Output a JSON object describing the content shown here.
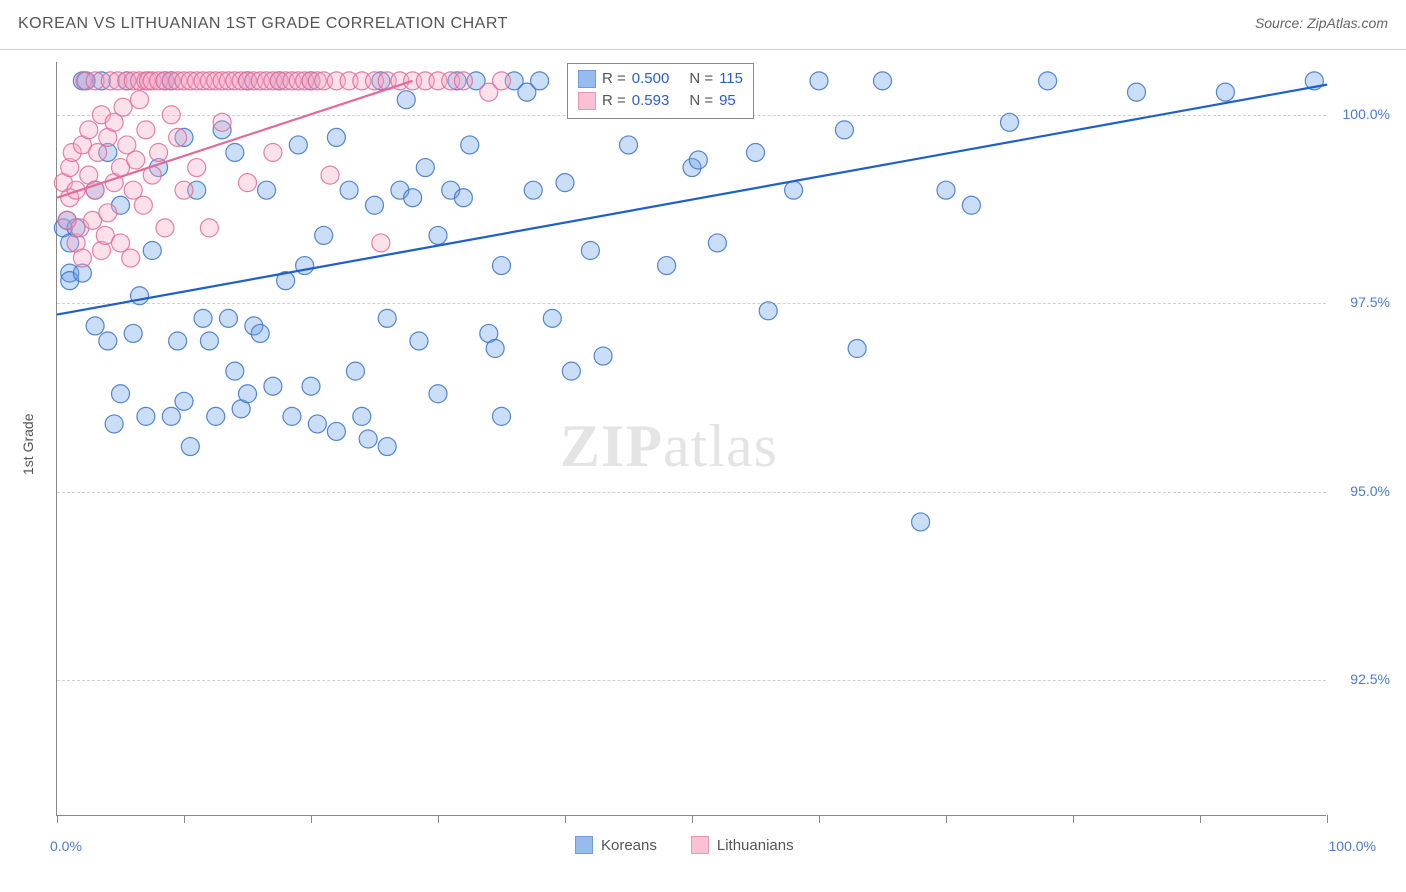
{
  "header": {
    "title": "KOREAN VS LITHUANIAN 1ST GRADE CORRELATION CHART",
    "source_label": "Source:",
    "source_name": "ZipAtlas.com"
  },
  "watermark": {
    "part1": "ZIP",
    "part2": "atlas"
  },
  "chart": {
    "type": "scatter",
    "background_color": "#ffffff",
    "grid_color": "#d0d0d0",
    "axis_color": "#888888",
    "xlim": [
      0,
      100
    ],
    "ylim": [
      90.7,
      100.7
    ],
    "y_ticks": [
      92.5,
      95.0,
      97.5,
      100.0
    ],
    "y_tick_labels": [
      "92.5%",
      "95.0%",
      "97.5%",
      "100.0%"
    ],
    "x_ticks": [
      0,
      10,
      20,
      30,
      40,
      50,
      60,
      70,
      80,
      90,
      100
    ],
    "x_axis_label_left": "0.0%",
    "x_axis_label_right": "100.0%",
    "y_axis_title": "1st Grade",
    "label_fontsize": 14,
    "label_color": "#4a7bd0",
    "marker_radius": 9,
    "marker_opacity": 0.42,
    "trend_line_width": 2.2,
    "series": [
      {
        "name": "Koreans",
        "color": "#6aa0e8",
        "stroke": "#3a72c9",
        "fill_opacity": 0.35,
        "trend_color": "#1e5fc9",
        "trend": {
          "x1": 0,
          "y1": 97.35,
          "x2": 100,
          "y2": 100.4
        },
        "R": "0.500",
        "N": "115",
        "points": [
          [
            0.5,
            98.5
          ],
          [
            0.8,
            98.6
          ],
          [
            1.0,
            97.9
          ],
          [
            1.0,
            98.3
          ],
          [
            1.0,
            97.8
          ],
          [
            1.5,
            98.5
          ],
          [
            2.0,
            97.9
          ],
          [
            2.0,
            100.45
          ],
          [
            2.3,
            100.45
          ],
          [
            3.0,
            97.2
          ],
          [
            3.0,
            99.0
          ],
          [
            3.5,
            100.45
          ],
          [
            4.0,
            99.5
          ],
          [
            4.0,
            97.0
          ],
          [
            4.5,
            95.9
          ],
          [
            5.0,
            98.8
          ],
          [
            5.0,
            96.3
          ],
          [
            5.5,
            100.45
          ],
          [
            6.0,
            97.1
          ],
          [
            6.5,
            97.6
          ],
          [
            7.0,
            96.0
          ],
          [
            7.5,
            98.2
          ],
          [
            8.0,
            99.3
          ],
          [
            8.5,
            100.45
          ],
          [
            9.0,
            100.45
          ],
          [
            9.0,
            96.0
          ],
          [
            9.5,
            97.0
          ],
          [
            10.0,
            99.7
          ],
          [
            10.0,
            96.2
          ],
          [
            10.5,
            95.6
          ],
          [
            11.0,
            99.0
          ],
          [
            11.5,
            97.3
          ],
          [
            12.0,
            97.0
          ],
          [
            12.5,
            96.0
          ],
          [
            13.0,
            99.8
          ],
          [
            13.5,
            97.3
          ],
          [
            14.0,
            99.5
          ],
          [
            14.0,
            96.6
          ],
          [
            14.5,
            96.1
          ],
          [
            15.0,
            96.3
          ],
          [
            15.0,
            100.45
          ],
          [
            15.5,
            97.2
          ],
          [
            16.0,
            97.1
          ],
          [
            16.5,
            99.0
          ],
          [
            17.0,
            96.4
          ],
          [
            17.5,
            100.45
          ],
          [
            18.0,
            97.8
          ],
          [
            18.5,
            96.0
          ],
          [
            19.0,
            99.6
          ],
          [
            19.5,
            98.0
          ],
          [
            20.0,
            96.4
          ],
          [
            20.0,
            100.45
          ],
          [
            20.5,
            95.9
          ],
          [
            21.0,
            98.4
          ],
          [
            22.0,
            99.7
          ],
          [
            22.0,
            95.8
          ],
          [
            23.0,
            99.0
          ],
          [
            23.5,
            96.6
          ],
          [
            24.0,
            96.0
          ],
          [
            24.5,
            95.7
          ],
          [
            25.0,
            98.8
          ],
          [
            25.5,
            100.45
          ],
          [
            26.0,
            97.3
          ],
          [
            26.0,
            95.6
          ],
          [
            27.0,
            99.0
          ],
          [
            27.5,
            100.2
          ],
          [
            28.0,
            98.9
          ],
          [
            28.5,
            97.0
          ],
          [
            29.0,
            99.3
          ],
          [
            30.0,
            98.4
          ],
          [
            30.0,
            96.3
          ],
          [
            31.0,
            99.0
          ],
          [
            31.5,
            100.45
          ],
          [
            32.0,
            98.9
          ],
          [
            32.5,
            99.6
          ],
          [
            33.0,
            100.45
          ],
          [
            34.0,
            97.1
          ],
          [
            34.5,
            96.9
          ],
          [
            35.0,
            98.0
          ],
          [
            35.0,
            96.0
          ],
          [
            36.0,
            100.45
          ],
          [
            37.0,
            100.3
          ],
          [
            37.5,
            99.0
          ],
          [
            38.0,
            100.45
          ],
          [
            39.0,
            97.3
          ],
          [
            40.0,
            99.1
          ],
          [
            40.5,
            96.6
          ],
          [
            41.0,
            100.45
          ],
          [
            42.0,
            98.2
          ],
          [
            43.0,
            96.8
          ],
          [
            44.0,
            100.45
          ],
          [
            45.0,
            99.6
          ],
          [
            46.0,
            100.45
          ],
          [
            48.0,
            98.0
          ],
          [
            50.0,
            99.3
          ],
          [
            50.5,
            99.4
          ],
          [
            52.0,
            98.3
          ],
          [
            53.0,
            100.45
          ],
          [
            55.0,
            99.5
          ],
          [
            56.0,
            97.4
          ],
          [
            58.0,
            99.0
          ],
          [
            60.0,
            100.45
          ],
          [
            62.0,
            99.8
          ],
          [
            63.0,
            96.9
          ],
          [
            65.0,
            100.45
          ],
          [
            68.0,
            94.6
          ],
          [
            70.0,
            99.0
          ],
          [
            72.0,
            98.8
          ],
          [
            75.0,
            99.9
          ],
          [
            78.0,
            100.45
          ],
          [
            85.0,
            100.3
          ],
          [
            92.0,
            100.3
          ],
          [
            99.0,
            100.45
          ]
        ]
      },
      {
        "name": "Lithuanians",
        "color": "#f7a8c3",
        "stroke": "#e16b99",
        "fill_opacity": 0.35,
        "trend_color": "#e16b99",
        "trend": {
          "x1": 0,
          "y1": 98.9,
          "x2": 28,
          "y2": 100.45
        },
        "R": "0.593",
        "N": "95",
        "points": [
          [
            0.5,
            99.1
          ],
          [
            0.8,
            98.6
          ],
          [
            1.0,
            99.3
          ],
          [
            1.0,
            98.9
          ],
          [
            1.2,
            99.5
          ],
          [
            1.5,
            98.3
          ],
          [
            1.5,
            99.0
          ],
          [
            1.8,
            98.5
          ],
          [
            2.0,
            99.6
          ],
          [
            2.0,
            98.1
          ],
          [
            2.2,
            100.45
          ],
          [
            2.5,
            99.2
          ],
          [
            2.5,
            99.8
          ],
          [
            2.8,
            98.6
          ],
          [
            3.0,
            99.0
          ],
          [
            3.0,
            100.45
          ],
          [
            3.2,
            99.5
          ],
          [
            3.5,
            98.2
          ],
          [
            3.5,
            100.0
          ],
          [
            3.8,
            98.4
          ],
          [
            4.0,
            99.7
          ],
          [
            4.0,
            98.7
          ],
          [
            4.2,
            100.45
          ],
          [
            4.5,
            99.1
          ],
          [
            4.5,
            99.9
          ],
          [
            4.8,
            100.45
          ],
          [
            5.0,
            98.3
          ],
          [
            5.0,
            99.3
          ],
          [
            5.2,
            100.1
          ],
          [
            5.5,
            99.6
          ],
          [
            5.5,
            100.45
          ],
          [
            5.8,
            98.1
          ],
          [
            6.0,
            99.0
          ],
          [
            6.0,
            100.45
          ],
          [
            6.2,
            99.4
          ],
          [
            6.5,
            100.2
          ],
          [
            6.5,
            100.45
          ],
          [
            6.8,
            98.8
          ],
          [
            7.0,
            99.8
          ],
          [
            7.0,
            100.45
          ],
          [
            7.2,
            100.45
          ],
          [
            7.5,
            99.2
          ],
          [
            7.5,
            100.45
          ],
          [
            8.0,
            99.5
          ],
          [
            8.0,
            100.45
          ],
          [
            8.5,
            100.45
          ],
          [
            8.5,
            98.5
          ],
          [
            9.0,
            100.0
          ],
          [
            9.0,
            100.45
          ],
          [
            9.5,
            100.45
          ],
          [
            9.5,
            99.7
          ],
          [
            10.0,
            100.45
          ],
          [
            10.0,
            99.0
          ],
          [
            10.5,
            100.45
          ],
          [
            11.0,
            100.45
          ],
          [
            11.0,
            99.3
          ],
          [
            11.5,
            100.45
          ],
          [
            12.0,
            100.45
          ],
          [
            12.0,
            98.5
          ],
          [
            12.5,
            100.45
          ],
          [
            13.0,
            100.45
          ],
          [
            13.0,
            99.9
          ],
          [
            13.5,
            100.45
          ],
          [
            14.0,
            100.45
          ],
          [
            14.5,
            100.45
          ],
          [
            15.0,
            100.45
          ],
          [
            15.0,
            99.1
          ],
          [
            15.5,
            100.45
          ],
          [
            16.0,
            100.45
          ],
          [
            16.5,
            100.45
          ],
          [
            17.0,
            100.45
          ],
          [
            17.0,
            99.5
          ],
          [
            17.5,
            100.45
          ],
          [
            18.0,
            100.45
          ],
          [
            18.5,
            100.45
          ],
          [
            19.0,
            100.45
          ],
          [
            19.5,
            100.45
          ],
          [
            20.0,
            100.45
          ],
          [
            20.5,
            100.45
          ],
          [
            21.0,
            100.45
          ],
          [
            21.5,
            99.2
          ],
          [
            22.0,
            100.45
          ],
          [
            23.0,
            100.45
          ],
          [
            24.0,
            100.45
          ],
          [
            25.0,
            100.45
          ],
          [
            25.5,
            98.3
          ],
          [
            26.0,
            100.45
          ],
          [
            27.0,
            100.45
          ],
          [
            28.0,
            100.45
          ],
          [
            29.0,
            100.45
          ],
          [
            30.0,
            100.45
          ],
          [
            31.0,
            100.45
          ],
          [
            32.0,
            100.45
          ],
          [
            34.0,
            100.3
          ],
          [
            35.0,
            100.45
          ]
        ]
      }
    ]
  },
  "legend_top": {
    "R_label": "R =",
    "N_label": "N ="
  },
  "bottom_legend": {
    "series1": "Koreans",
    "series2": "Lithuanians"
  }
}
